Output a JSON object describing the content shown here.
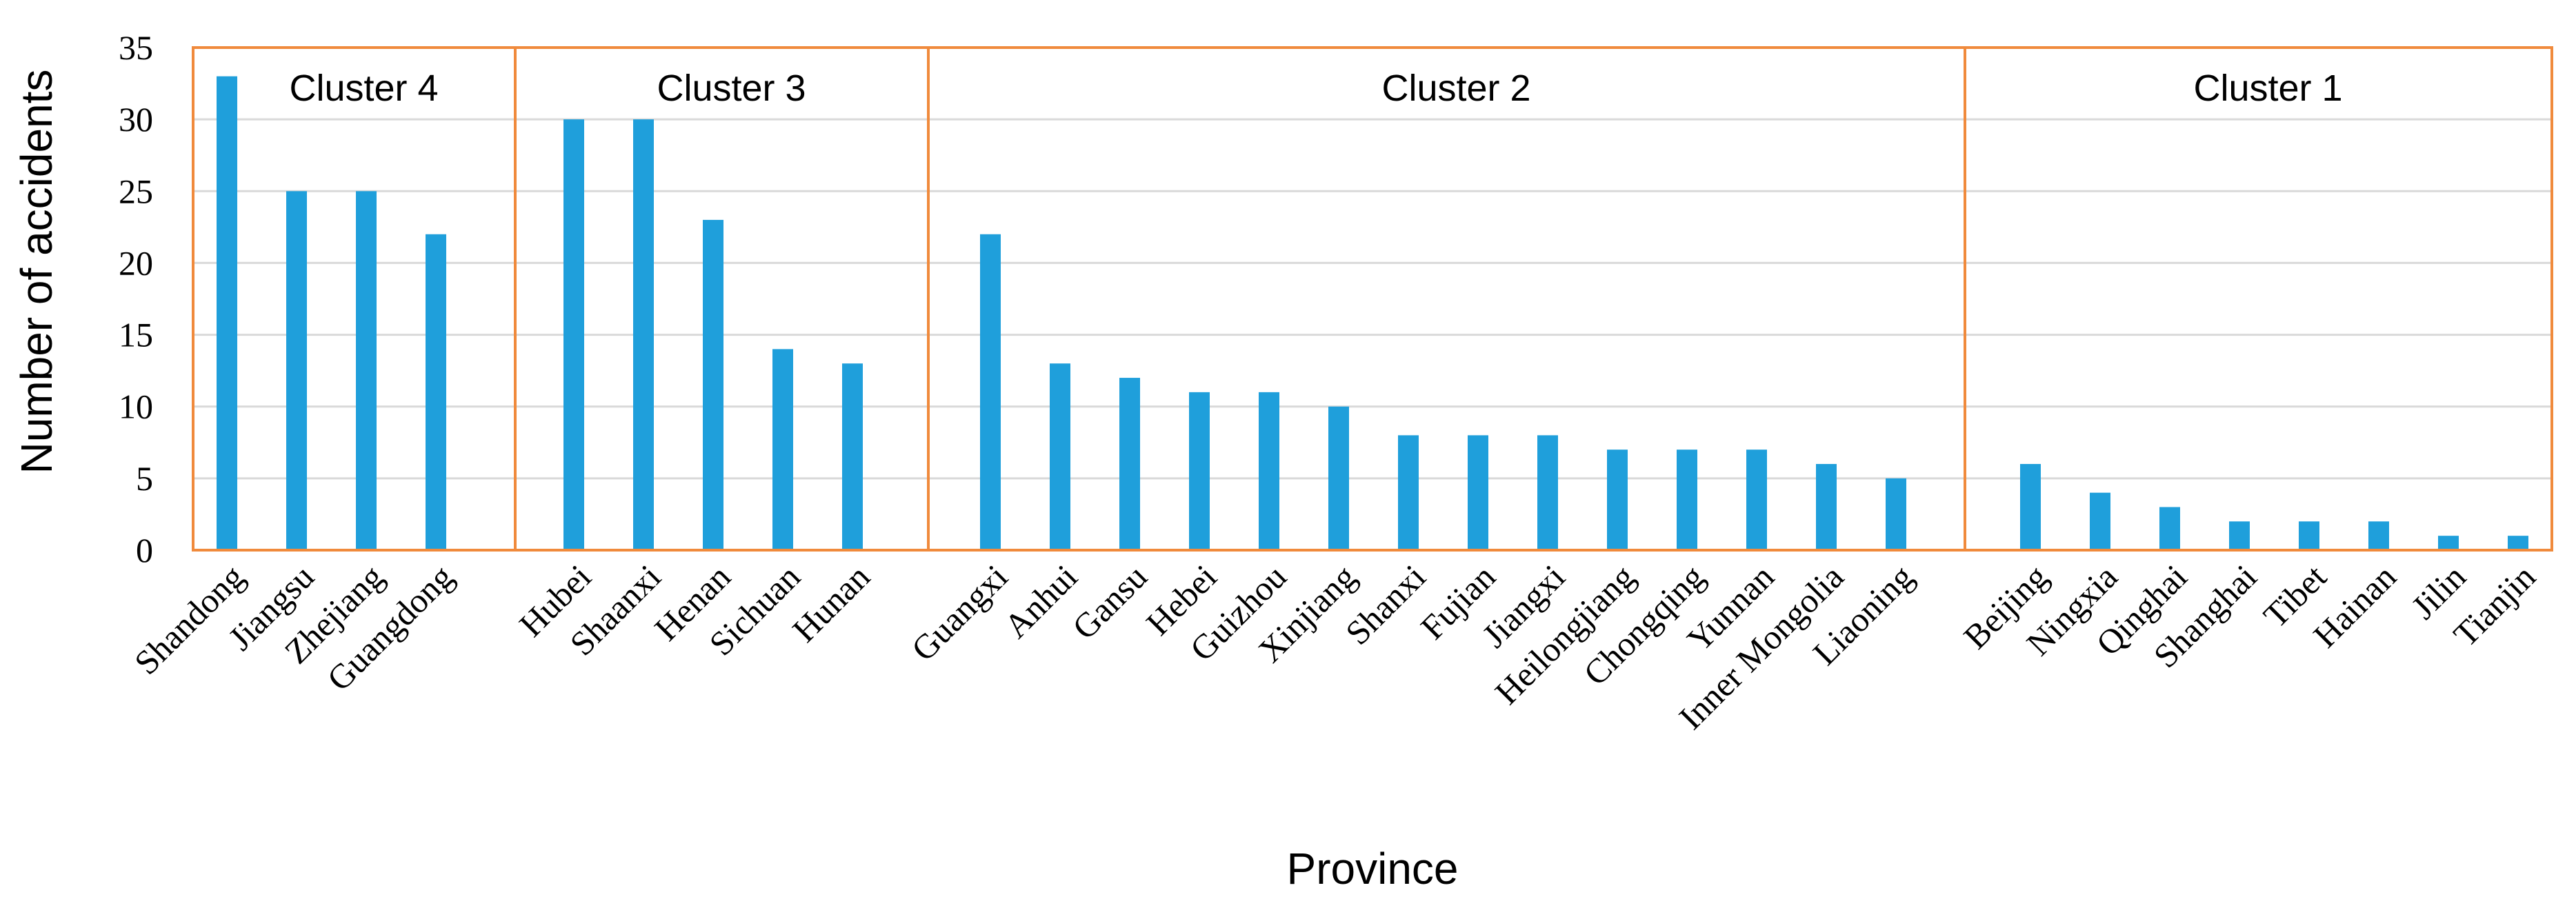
{
  "chart_data": {
    "type": "bar",
    "xlabel": "Province",
    "ylabel": "Number of accidents",
    "ylim": [
      0,
      35
    ],
    "yticks": [
      0,
      5,
      10,
      15,
      20,
      25,
      30,
      35
    ],
    "grid": true,
    "colors": {
      "bar": "#1F9FDB",
      "cluster_border": "#F08A3C",
      "grid": "#D9D9D9"
    },
    "clusters": [
      {
        "label": "Cluster 4",
        "categories": [
          "Shandong",
          "Jiangsu",
          "Zhejiang",
          "Guangdong"
        ],
        "values": [
          33,
          25,
          25,
          22
        ]
      },
      {
        "label": "Cluster 3",
        "categories": [
          "Hubei",
          "Shaanxi",
          "Henan",
          "Sichuan",
          "Hunan"
        ],
        "values": [
          30,
          30,
          23,
          14,
          13
        ]
      },
      {
        "label": "Cluster 2",
        "categories": [
          "Guangxi",
          "Anhui",
          "Gansu",
          "Hebei",
          "Guizhou",
          "Xinjiang",
          "Shanxi",
          "Fujian",
          "Jiangxi",
          "Heilongjiang",
          "Chongqing",
          "Yunnan",
          "Inner Mongolia",
          "Liaoning"
        ],
        "values": [
          22,
          13,
          12,
          11,
          11,
          10,
          8,
          8,
          8,
          7,
          7,
          7,
          6,
          5
        ]
      },
      {
        "label": "Cluster 1",
        "categories": [
          "Beijing",
          "Ningxia",
          "Qinghai",
          "Shanghai",
          "Tibet",
          "Hainan",
          "Jilin",
          "Tianjin"
        ],
        "values": [
          6,
          4,
          3,
          2,
          2,
          2,
          1,
          1
        ]
      }
    ]
  }
}
